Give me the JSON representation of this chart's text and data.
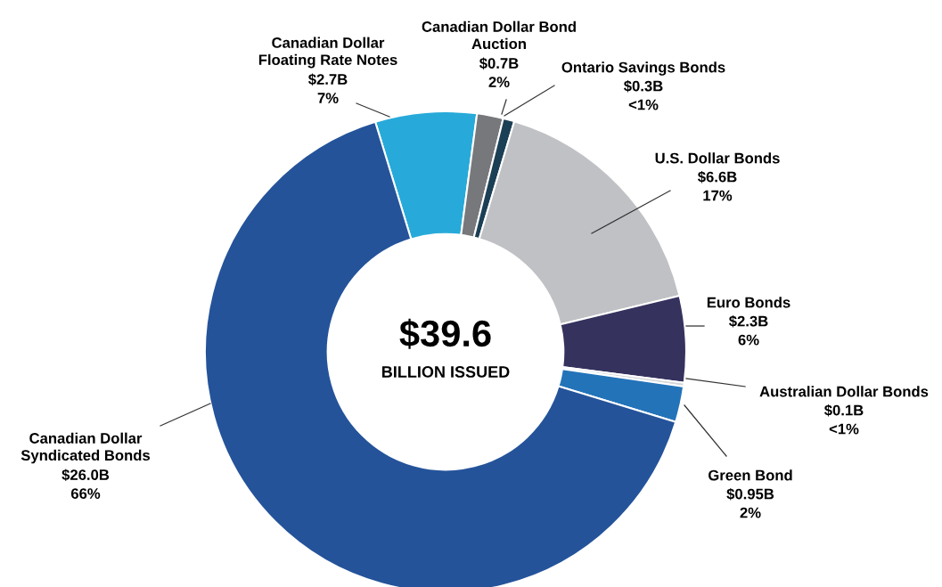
{
  "chart_data": {
    "type": "donut",
    "categories": [
      "Canadian Dollar\nFloating Rate Notes",
      "Canadian Dollar Bond\nAuction",
      "Ontario Savings Bonds",
      "U.S. Dollar Bonds",
      "Euro Bonds",
      "Australian Dollar Bonds",
      "Green Bond",
      "Canadian Dollar\nSyndicated Bonds"
    ],
    "values": [
      2.7,
      0.7,
      0.3,
      6.6,
      2.3,
      0.1,
      0.95,
      26.0
    ],
    "value_labels": [
      "$2.7B",
      "$0.7B",
      "$0.3B",
      "$6.6B",
      "$2.3B",
      "$0.1B",
      "$0.95B",
      "$26.0B"
    ],
    "colors": [
      "#27aad9",
      "#77787b",
      "#1b3f55",
      "#c0c1c5",
      "#35325e",
      "#d5d6d9",
      "#2373b9",
      "#24539a"
    ],
    "annotations": [
      "$39.6",
      "BILLION ISSUED",
      "7%",
      "2%",
      "<1%",
      "17%",
      "6%",
      "<1%",
      "2%",
      "66%"
    ],
    "legend": false
  }
}
